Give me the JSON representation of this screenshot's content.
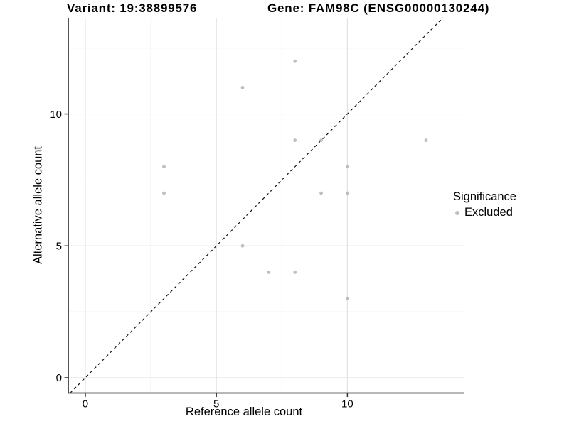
{
  "chart_data": {
    "type": "scatter",
    "titles": {
      "variant": "Variant: 19:38899576",
      "gene": "Gene: FAM98C (ENSG00000130244)"
    },
    "xlabel": "Reference allele count",
    "ylabel": "Alternative allele count",
    "x_ticks": [
      0,
      5,
      10
    ],
    "y_ticks": [
      0,
      5,
      10
    ],
    "x_minor_gridlines": [
      2.5,
      7.5,
      12.5
    ],
    "y_minor_gridlines": [
      2.5,
      7.5,
      12.5
    ],
    "xlim": [
      -0.65,
      14.44
    ],
    "ylim": [
      -0.58,
      13.65
    ],
    "grid": "major+minor",
    "legend": {
      "position": "right",
      "title": "Significance",
      "items": [
        {
          "label": "Excluded",
          "color": "#bebebe"
        }
      ]
    },
    "series": [
      {
        "name": "Excluded",
        "color": "#bebebe",
        "points": [
          [
            3,
            7
          ],
          [
            3,
            8
          ],
          [
            6,
            5
          ],
          [
            6,
            11
          ],
          [
            7,
            4
          ],
          [
            8,
            4
          ],
          [
            8,
            9
          ],
          [
            8,
            12
          ],
          [
            9,
            7
          ],
          [
            9,
            9
          ],
          [
            10,
            3
          ],
          [
            10,
            7
          ],
          [
            10,
            8
          ],
          [
            13,
            9
          ]
        ]
      }
    ],
    "reference_line": {
      "type": "identity",
      "style": "dashed",
      "color": "#111111"
    }
  },
  "colors": {
    "background": "#ffffff",
    "grid_major": "#e2e2e2",
    "grid_minor": "#efefef",
    "axis": "#404040",
    "tick": "#333333",
    "text": "#000000"
  }
}
